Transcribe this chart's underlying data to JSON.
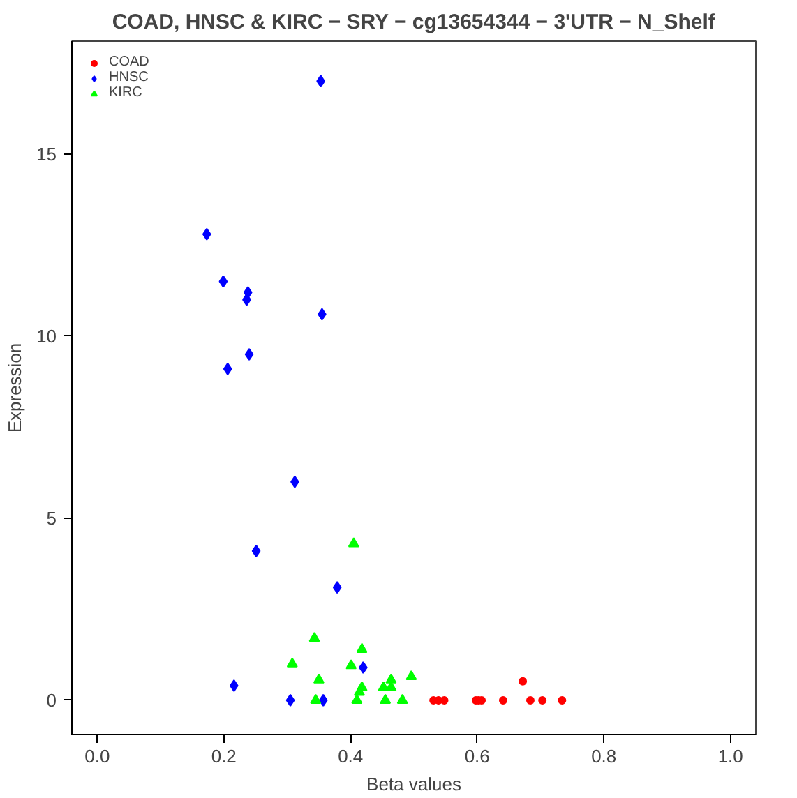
{
  "chart_data": {
    "type": "scatter",
    "title": "COAD, HNSC & KIRC − SRY − cg13654344 − 3'UTR − N_Shelf",
    "xlabel": "Beta values",
    "ylabel": "Expression",
    "xlim": [
      -0.04,
      1.04
    ],
    "ylim": [
      -0.94,
      18.1
    ],
    "xticks": [
      {
        "value": 0,
        "label": "0.0"
      },
      {
        "value": 0.2,
        "label": "0.2"
      },
      {
        "value": 0.4,
        "label": "0.4"
      },
      {
        "value": 0.6,
        "label": "0.6"
      },
      {
        "value": 0.8,
        "label": "0.8"
      },
      {
        "value": 1,
        "label": "1.0"
      }
    ],
    "yticks": [
      0,
      5,
      10,
      15
    ],
    "grid": false,
    "legend": "top left",
    "series": [
      {
        "name": "COAD",
        "color": "#ff0000",
        "marker": "circle",
        "x": [
          0.531,
          0.539,
          0.548,
          0.598,
          0.602,
          0.607,
          0.641,
          0.684,
          0.703,
          0.734,
          0.672
        ],
        "values": [
          0,
          0,
          0,
          0,
          0,
          0,
          0,
          0,
          0,
          0,
          0.52
        ]
      },
      {
        "name": "HNSC",
        "color": "#0000ff",
        "marker": "diamond",
        "x": [
          0.353,
          0.173,
          0.199,
          0.238,
          0.236,
          0.355,
          0.24,
          0.206,
          0.312,
          0.251,
          0.379,
          0.42,
          0.216,
          0.305,
          0.357
        ],
        "values": [
          17.0,
          12.8,
          11.5,
          11.2,
          11.0,
          10.6,
          9.5,
          9.1,
          6.0,
          4.1,
          3.1,
          0.9,
          0.4,
          0,
          0
        ]
      },
      {
        "name": "KIRC",
        "color": "#00ff00",
        "marker": "triangle",
        "x": [
          0.405,
          0.343,
          0.418,
          0.308,
          0.401,
          0.35,
          0.464,
          0.496,
          0.418,
          0.452,
          0.464,
          0.414,
          0.345,
          0.41,
          0.455,
          0.482
        ],
        "values": [
          4.3,
          1.7,
          1.4,
          1.0,
          0.95,
          0.56,
          0.56,
          0.65,
          0.35,
          0.35,
          0.35,
          0.22,
          0,
          0,
          0,
          0
        ]
      }
    ]
  }
}
